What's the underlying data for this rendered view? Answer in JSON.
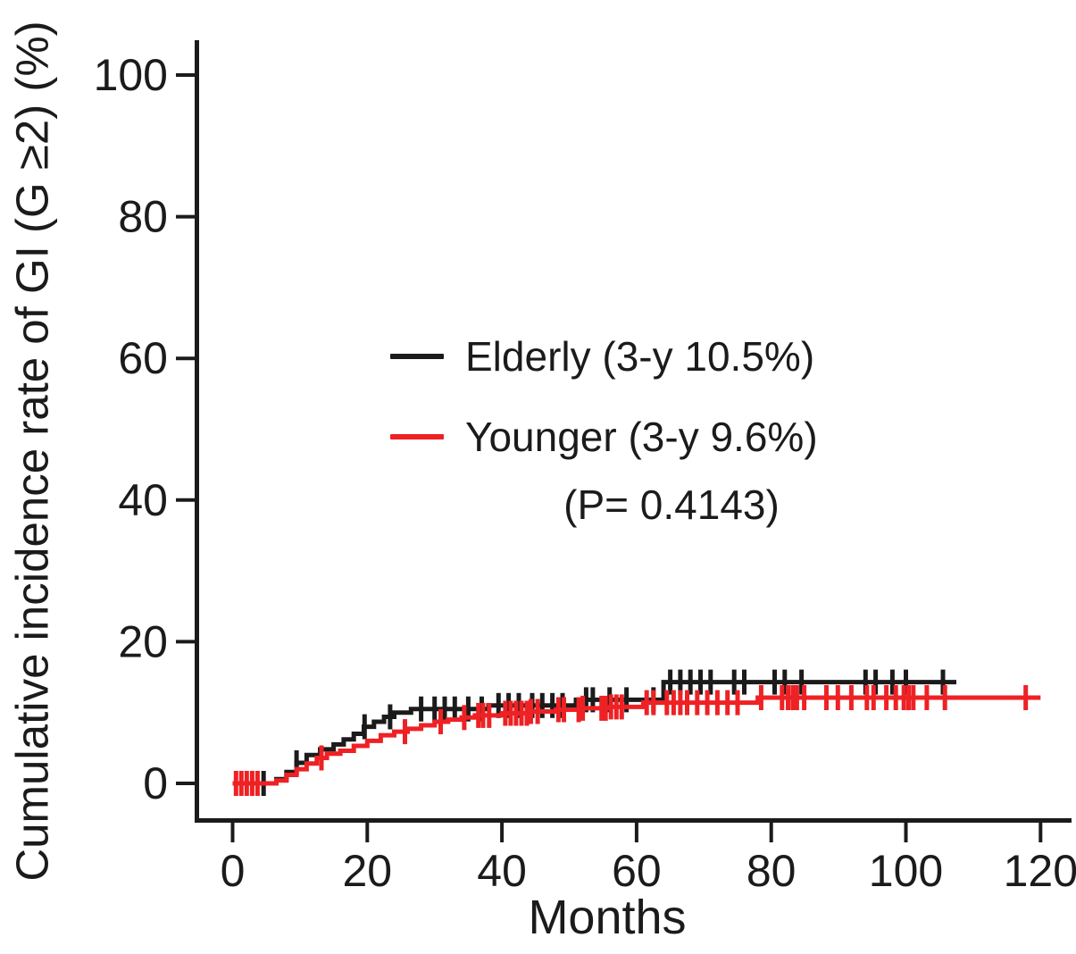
{
  "figure": {
    "y_axis_label": "Cumulative incidence rate of GI (G ≥2) (%)",
    "x_axis_label": "Months",
    "p_value_text": "(P= 0.4143)",
    "legend": [
      {
        "label": "Elderly (3-y 10.5%)",
        "color": "#1b1b1b"
      },
      {
        "label": "Younger (3-y 9.6%)",
        "color": "#ee2124"
      }
    ]
  },
  "chart_data": {
    "type": "line",
    "subtype": "cumulative-incidence-step-curve",
    "title": "",
    "xlabel": "Months",
    "ylabel": "Cumulative incidence rate of GI (G ≥2) (%)",
    "xlim": [
      0,
      120
    ],
    "ylim": [
      0,
      100
    ],
    "x_ticks": [
      0,
      20,
      40,
      60,
      80,
      100,
      120
    ],
    "y_ticks": [
      0,
      20,
      40,
      60,
      80,
      100
    ],
    "grid": false,
    "legend_position": "upper-center-inside",
    "annotation": "(P= 0.4143)",
    "axis_color": "#1b1b1b",
    "series": [
      {
        "name": "Elderly (3-y 10.5%)",
        "color": "#1b1b1b",
        "three_year_rate_pct": 10.5,
        "start_month": 0,
        "end_month": 107.5,
        "steps": [
          [
            6.5,
            0.6
          ],
          [
            8,
            1.6
          ],
          [
            9.5,
            2.9
          ],
          [
            11,
            4.0
          ],
          [
            13,
            4.8
          ],
          [
            15,
            5.5
          ],
          [
            16.5,
            6.2
          ],
          [
            18,
            7.0
          ],
          [
            19.5,
            8.0
          ],
          [
            21,
            8.7
          ],
          [
            22.5,
            9.4
          ],
          [
            24,
            10.0
          ],
          [
            26.5,
            10.5
          ],
          [
            38,
            11.0
          ],
          [
            51,
            11.8
          ],
          [
            64,
            14.3
          ]
        ],
        "censor_months": [
          4.6,
          9.5,
          19.6,
          23.4,
          28,
          30,
          31.5,
          33,
          35,
          37,
          39.5,
          41,
          42.5,
          44.5,
          46,
          47.5,
          49,
          52.5,
          53.5,
          56,
          58.5,
          62.5,
          65,
          66.5,
          68,
          69.5,
          71,
          74.5,
          76,
          80.5,
          82,
          84.5,
          94,
          95.5,
          98,
          100,
          105.5
        ]
      },
      {
        "name": "Younger (3-y 9.6%)",
        "color": "#ee2124",
        "three_year_rate_pct": 9.6,
        "start_month": 0,
        "end_month": 120,
        "steps": [
          [
            6.5,
            0.4
          ],
          [
            8,
            1.2
          ],
          [
            9.5,
            2.0
          ],
          [
            11,
            2.8
          ],
          [
            12.5,
            3.6
          ],
          [
            14,
            4.2
          ],
          [
            16,
            4.6
          ],
          [
            18,
            5.3
          ],
          [
            20,
            6.0
          ],
          [
            22,
            6.8
          ],
          [
            24,
            7.3
          ],
          [
            26,
            7.7
          ],
          [
            28,
            8.2
          ],
          [
            30,
            8.7
          ],
          [
            32,
            9.0
          ],
          [
            34,
            9.3
          ],
          [
            36,
            9.6
          ],
          [
            40,
            9.9
          ],
          [
            44,
            10.15
          ],
          [
            48,
            10.4
          ],
          [
            52,
            10.6
          ],
          [
            56,
            10.8
          ],
          [
            61,
            11.4
          ],
          [
            78,
            12.1
          ]
        ],
        "censor_months": [
          0.5,
          1.3,
          2.1,
          2.9,
          3.7,
          13.2,
          25.6,
          30.9,
          34.4,
          36.5,
          37.2,
          38.1,
          40.5,
          41.3,
          42.1,
          42.9,
          43.7,
          44.3,
          45.3,
          48.4,
          49.2,
          51.4,
          52,
          54.8,
          55.4,
          56.2,
          57,
          57.8,
          61.5,
          62.5,
          64.5,
          65.5,
          66.5,
          67.5,
          69,
          70.5,
          72,
          73.5,
          75,
          78.5,
          81.6,
          82.5,
          83.2,
          83.8,
          84.9,
          88.2,
          89.9,
          91.9,
          94.2,
          95.2,
          97.1,
          98.5,
          99.7,
          100.4,
          101.1,
          103.1,
          105.8,
          117.8
        ]
      }
    ]
  }
}
